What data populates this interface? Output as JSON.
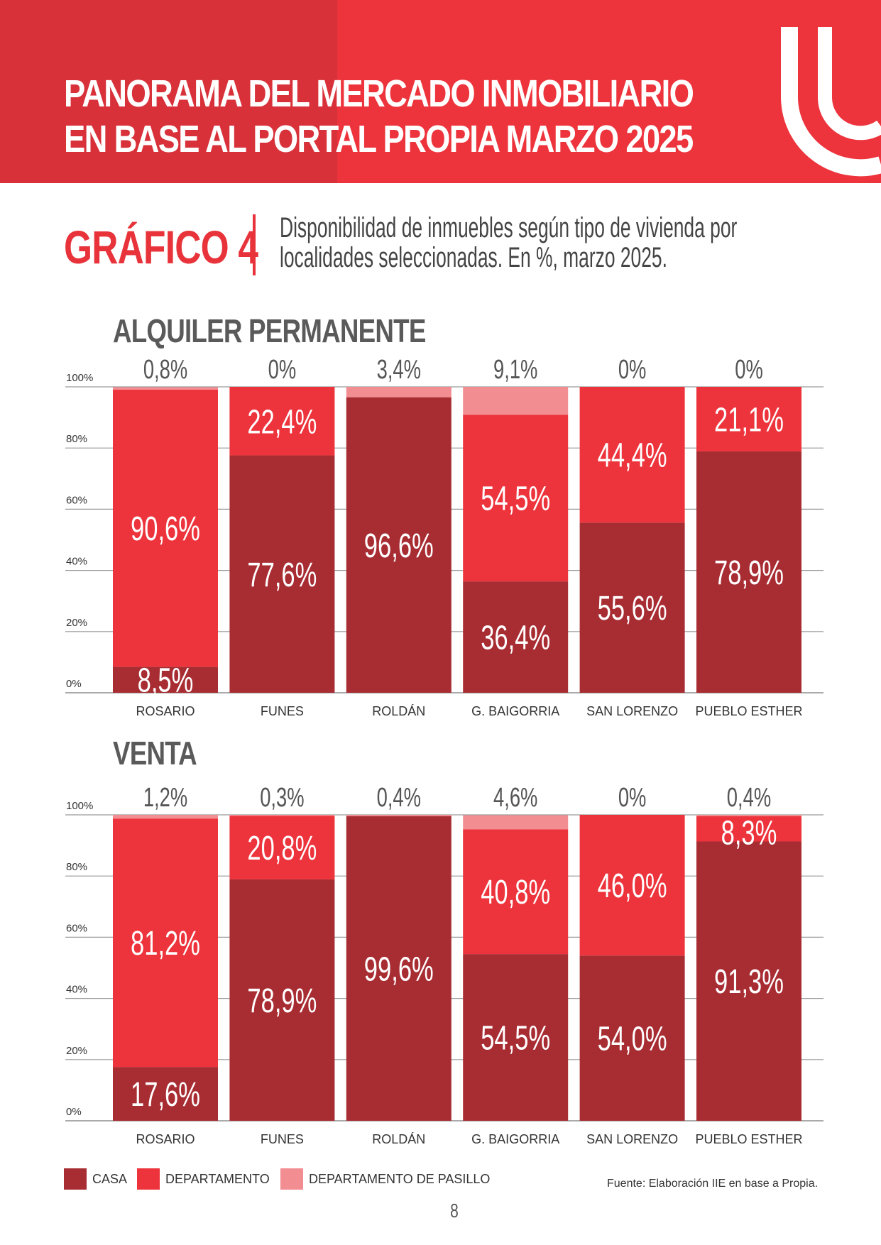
{
  "header": {
    "title_line1": "PANORAMA DEL MERCADO INMOBILIARIO",
    "title_line2": "EN BASE AL PORTAL PROPIA MARZO 2025"
  },
  "figure": {
    "label": "GRÁFICO 4",
    "description_line1": "Disponibilidad de inmuebles según tipo de vivienda por",
    "description_line2": "localidades seleccionadas. En %, marzo 2025."
  },
  "colors": {
    "header_bg": "#ed333b",
    "casa": "#a82d33",
    "departamento": "#ed333b",
    "pasillo": "#f28d92",
    "accent_text": "#e8333b"
  },
  "chart_data": [
    {
      "type": "bar",
      "stacked": true,
      "title": "ALQUILER PERMANENTE",
      "categories": [
        "ROSARIO",
        "FUNES",
        "ROLDÁN",
        "G. BAIGORRIA",
        "SAN LORENZO",
        "PUEBLO ESTHER"
      ],
      "series": [
        {
          "name": "CASA",
          "values": [
            8.5,
            77.6,
            96.6,
            36.4,
            55.6,
            78.9
          ],
          "labels": [
            "8,5%",
            "77,6%",
            "96,6%",
            "36,4%",
            "55,6%",
            "78,9%"
          ]
        },
        {
          "name": "DEPARTAMENTO",
          "values": [
            90.6,
            22.4,
            0,
            54.5,
            44.4,
            21.1
          ],
          "labels": [
            "90,6%",
            "22,4%",
            "",
            "54,5%",
            "44,4%",
            "21,1%"
          ]
        },
        {
          "name": "DEPARTAMENTO DE PASILLO",
          "values": [
            0.8,
            0,
            3.4,
            9.1,
            0,
            0
          ],
          "labels": [
            "0,8%",
            "0%",
            "3,4%",
            "9,1%",
            "0%",
            "0%"
          ]
        }
      ],
      "y_ticks": [
        "0%",
        "20%",
        "40%",
        "60%",
        "80%",
        "100%"
      ],
      "ylim": [
        0,
        100
      ],
      "grid": true
    },
    {
      "type": "bar",
      "stacked": true,
      "title": "VENTA",
      "categories": [
        "ROSARIO",
        "FUNES",
        "ROLDÁN",
        "G. BAIGORRIA",
        "SAN LORENZO",
        "PUEBLO ESTHER"
      ],
      "series": [
        {
          "name": "CASA",
          "values": [
            17.6,
            78.9,
            99.6,
            54.5,
            54.0,
            91.3
          ],
          "labels": [
            "17,6%",
            "78,9%",
            "99,6%",
            "54,5%",
            "54,0%",
            "91,3%"
          ]
        },
        {
          "name": "DEPARTAMENTO",
          "values": [
            81.2,
            20.8,
            0,
            40.8,
            46.0,
            8.3
          ],
          "labels": [
            "81,2%",
            "20,8%",
            "",
            "40,8%",
            "46,0%",
            "8,3%"
          ]
        },
        {
          "name": "DEPARTAMENTO DE PASILLO",
          "values": [
            1.2,
            0.3,
            0.4,
            4.6,
            0,
            0.4
          ],
          "labels": [
            "1,2%",
            "0,3%",
            "0,4%",
            "4,6%",
            "0%",
            "0,4%"
          ]
        }
      ],
      "y_ticks": [
        "0%",
        "20%",
        "40%",
        "60%",
        "80%",
        "100%"
      ],
      "ylim": [
        0,
        100
      ],
      "grid": true
    }
  ],
  "legend": {
    "items": [
      {
        "label": "CASA",
        "color": "#a82d33"
      },
      {
        "label": "DEPARTAMENTO",
        "color": "#ed333b"
      },
      {
        "label": "DEPARTAMENTO DE PASILLO",
        "color": "#f28d92"
      }
    ]
  },
  "source": "Fuente: Elaboración IIE en base a Propia.",
  "page_number": "8"
}
